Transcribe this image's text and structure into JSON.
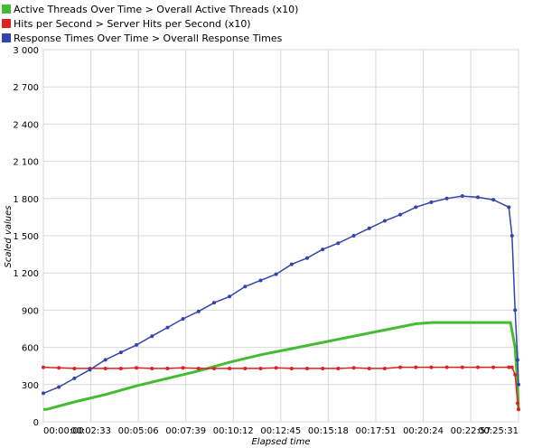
{
  "chart_data": {
    "type": "line",
    "title": "",
    "xlabel": "Elapsed time",
    "ylabel": "Scaled values",
    "ylim": [
      0,
      3000
    ],
    "yticks": [
      0,
      300,
      600,
      900,
      1200,
      1500,
      1800,
      2100,
      2400,
      2700,
      3000
    ],
    "ytick_labels": [
      "0",
      "300",
      "600",
      "900",
      "1 200",
      "1 500",
      "1 800",
      "2 100",
      "2 400",
      "2 700",
      "3 000"
    ],
    "xlim_seconds": [
      0,
      1531
    ],
    "xticks_seconds": [
      0,
      153,
      306,
      459,
      612,
      765,
      918,
      1071,
      1224,
      1377,
      1531
    ],
    "xtick_labels": [
      "00:00:00",
      "00:02:33",
      "00:05:06",
      "00:07:39",
      "00:10:12",
      "00:12:45",
      "00:15:18",
      "00:17:51",
      "00:20:24",
      "00:22:57",
      "00:25:31"
    ],
    "grid": true,
    "legend_position": "top-left",
    "series": [
      {
        "name": "Active Threads Over Time > Overall Active Threads (x10)",
        "color": "#44bb33",
        "style": "line",
        "x": [
          0,
          10,
          100,
          200,
          300,
          400,
          500,
          600,
          700,
          800,
          900,
          1000,
          1100,
          1200,
          1250,
          1300,
          1350,
          1400,
          1450,
          1500,
          1505,
          1520,
          1528,
          1531
        ],
        "y": [
          100,
          100,
          160,
          220,
          290,
          350,
          410,
          480,
          540,
          590,
          640,
          690,
          740,
          790,
          800,
          800,
          800,
          800,
          800,
          800,
          800,
          600,
          300,
          100
        ]
      },
      {
        "name": "Hits per Second > Server Hits per Second (x10)",
        "color": "#dd2222",
        "style": "line-markers",
        "x": [
          0,
          50,
          100,
          150,
          200,
          250,
          300,
          350,
          400,
          450,
          500,
          550,
          600,
          650,
          700,
          750,
          800,
          850,
          900,
          950,
          1000,
          1050,
          1100,
          1150,
          1200,
          1250,
          1300,
          1350,
          1400,
          1450,
          1500,
          1510,
          1520,
          1528,
          1531
        ],
        "y": [
          440,
          435,
          430,
          430,
          430,
          430,
          435,
          430,
          430,
          435,
          430,
          430,
          430,
          430,
          430,
          435,
          430,
          430,
          430,
          430,
          435,
          430,
          430,
          440,
          440,
          440,
          440,
          440,
          440,
          440,
          440,
          440,
          380,
          150,
          100
        ]
      },
      {
        "name": "Response Times Over Time > Overall Response Times",
        "color": "#3344aa",
        "style": "line-markers",
        "x": [
          0,
          50,
          100,
          150,
          200,
          250,
          300,
          350,
          400,
          450,
          500,
          550,
          600,
          650,
          700,
          750,
          800,
          850,
          900,
          950,
          1000,
          1050,
          1100,
          1150,
          1200,
          1250,
          1300,
          1350,
          1400,
          1450,
          1500,
          1510,
          1520,
          1528,
          1531
        ],
        "y": [
          230,
          280,
          350,
          420,
          500,
          560,
          620,
          690,
          760,
          830,
          890,
          960,
          1010,
          1090,
          1140,
          1190,
          1270,
          1320,
          1390,
          1440,
          1500,
          1560,
          1620,
          1670,
          1730,
          1770,
          1800,
          1820,
          1810,
          1790,
          1730,
          1500,
          900,
          500,
          300
        ]
      }
    ]
  }
}
